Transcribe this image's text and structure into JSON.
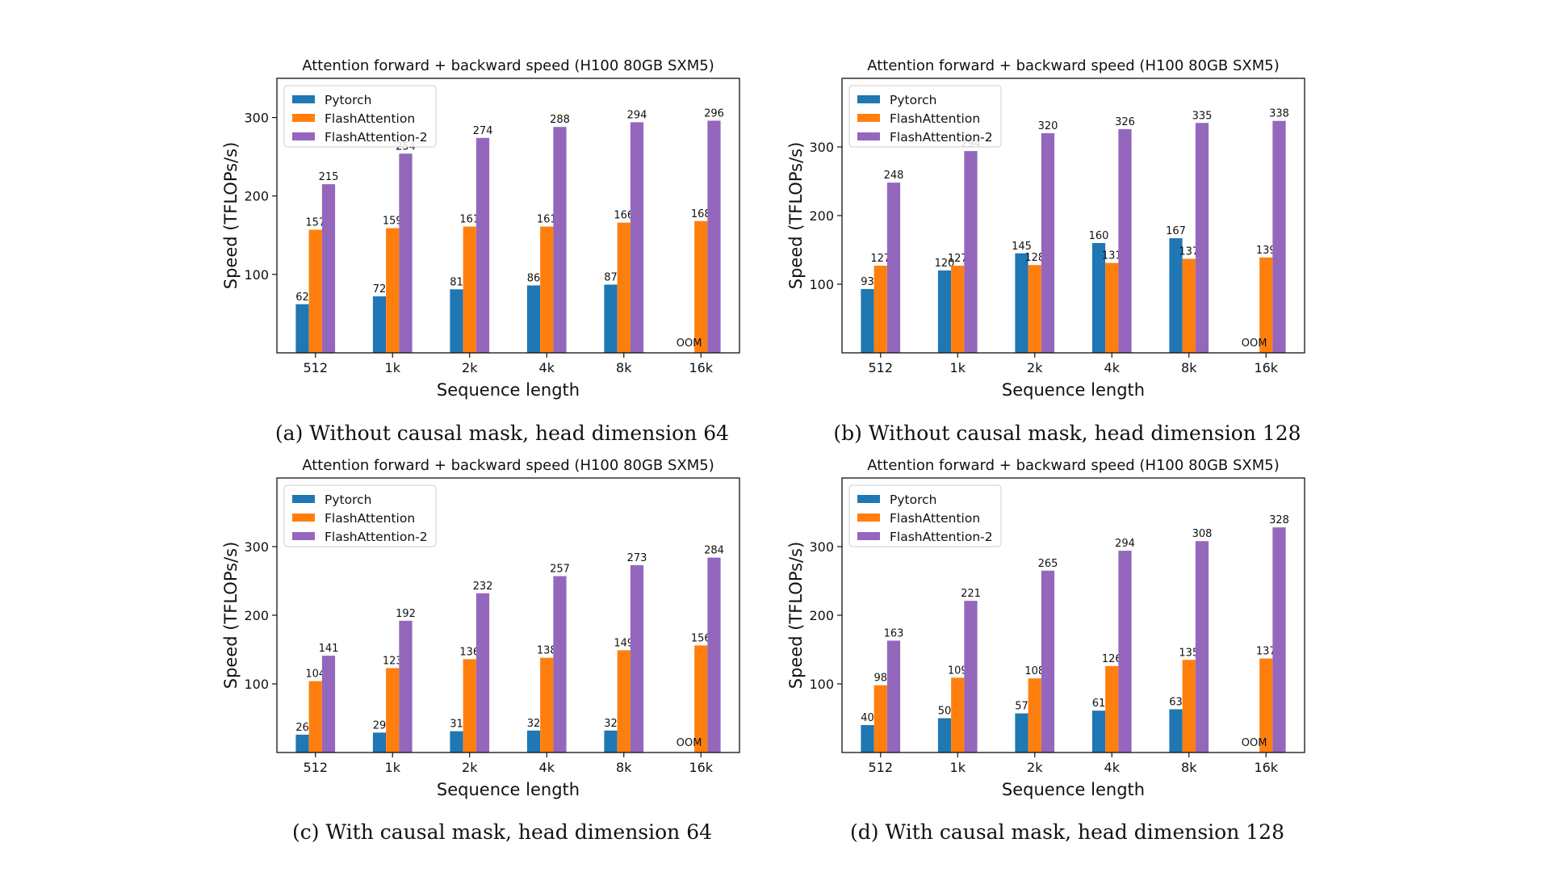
{
  "colors": {
    "Pytorch": "#1f77b4",
    "FlashAttention": "#ff7f0e",
    "FlashAttention-2": "#9467bd"
  },
  "panels": [
    {
      "caption": "(a) Without causal mask, head dimension 64",
      "chart_data": {
        "type": "bar",
        "title": "Attention forward + backward speed (H100 80GB SXM5)",
        "xlabel": "Sequence length",
        "ylabel": "Speed (TFLOPs/s)",
        "ylim": [
          0,
          350
        ],
        "yticks": [
          100,
          200,
          300
        ],
        "legend": "top-left",
        "categories": [
          "512",
          "1k",
          "2k",
          "4k",
          "8k",
          "16k"
        ],
        "series": [
          {
            "name": "Pytorch",
            "values": [
              62,
              72,
              81,
              86,
              87,
              null
            ]
          },
          {
            "name": "FlashAttention",
            "values": [
              157,
              159,
              161,
              161,
              166,
              168
            ]
          },
          {
            "name": "FlashAttention-2",
            "values": [
              215,
              254,
              274,
              288,
              294,
              296
            ]
          }
        ],
        "annotations": [
          {
            "category": "16k",
            "text": "OOM"
          }
        ]
      }
    },
    {
      "caption": "(b) Without causal mask, head dimension 128",
      "chart_data": {
        "type": "bar",
        "title": "Attention forward + backward speed (H100 80GB SXM5)",
        "xlabel": "Sequence length",
        "ylabel": "Speed (TFLOPs/s)",
        "ylim": [
          0,
          400
        ],
        "yticks": [
          100,
          200,
          300
        ],
        "legend": "top-left",
        "categories": [
          "512",
          "1k",
          "2k",
          "4k",
          "8k",
          "16k"
        ],
        "series": [
          {
            "name": "Pytorch",
            "values": [
              93,
              120,
              145,
              160,
              167,
              null
            ]
          },
          {
            "name": "FlashAttention",
            "values": [
              127,
              127,
              128,
              131,
              137,
              139
            ]
          },
          {
            "name": "FlashAttention-2",
            "values": [
              248,
              294,
              320,
              326,
              335,
              338
            ]
          }
        ],
        "annotations": [
          {
            "category": "16k",
            "text": "OOM"
          }
        ]
      }
    },
    {
      "caption": "(c) With causal mask, head dimension 64",
      "chart_data": {
        "type": "bar",
        "title": "Attention forward + backward speed (H100 80GB SXM5)",
        "xlabel": "Sequence length",
        "ylabel": "Speed (TFLOPs/s)",
        "ylim": [
          0,
          400
        ],
        "yticks": [
          100,
          200,
          300
        ],
        "legend": "top-left",
        "categories": [
          "512",
          "1k",
          "2k",
          "4k",
          "8k",
          "16k"
        ],
        "series": [
          {
            "name": "Pytorch",
            "values": [
              26,
              29,
              31,
              32,
              32,
              null
            ]
          },
          {
            "name": "FlashAttention",
            "values": [
              104,
              123,
              136,
              138,
              149,
              156
            ]
          },
          {
            "name": "FlashAttention-2",
            "values": [
              141,
              192,
              232,
              257,
              273,
              284
            ]
          }
        ],
        "annotations": [
          {
            "category": "16k",
            "text": "OOM"
          }
        ]
      }
    },
    {
      "caption": "(d) With causal mask, head dimension 128",
      "chart_data": {
        "type": "bar",
        "title": "Attention forward + backward speed (H100 80GB SXM5)",
        "xlabel": "Sequence length",
        "ylabel": "Speed (TFLOPs/s)",
        "ylim": [
          0,
          400
        ],
        "yticks": [
          100,
          200,
          300
        ],
        "legend": "top-left",
        "categories": [
          "512",
          "1k",
          "2k",
          "4k",
          "8k",
          "16k"
        ],
        "series": [
          {
            "name": "Pytorch",
            "values": [
              40,
              50,
              57,
              61,
              63,
              null
            ]
          },
          {
            "name": "FlashAttention",
            "values": [
              98,
              109,
              108,
              126,
              135,
              137
            ]
          },
          {
            "name": "FlashAttention-2",
            "values": [
              163,
              221,
              265,
              294,
              308,
              328
            ]
          }
        ],
        "annotations": [
          {
            "category": "16k",
            "text": "OOM"
          }
        ]
      }
    }
  ]
}
